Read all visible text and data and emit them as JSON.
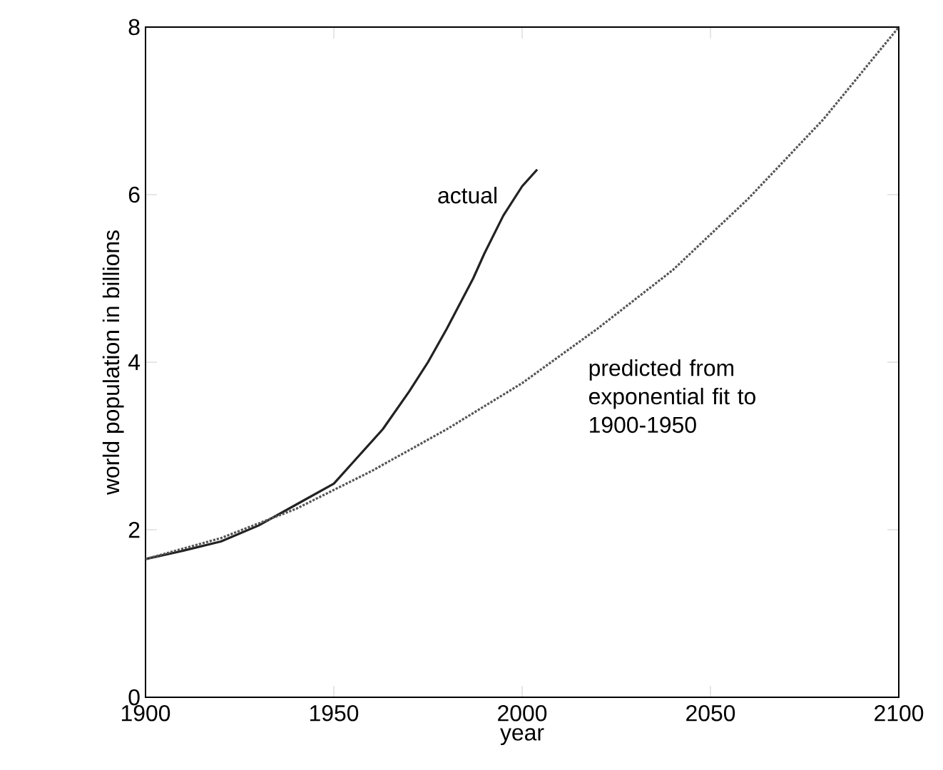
{
  "chart_data": {
    "type": "line",
    "xlabel": "year",
    "ylabel": "world population in billions",
    "xlim": [
      1900,
      2100
    ],
    "ylim": [
      0,
      8
    ],
    "xticks": [
      1900,
      1950,
      2000,
      2050,
      2100
    ],
    "yticks": [
      0,
      2,
      4,
      6,
      8
    ],
    "series": [
      {
        "name": "actual",
        "color": "#222222",
        "line_style": "solid",
        "x": [
          1900,
          1910,
          1920,
          1930,
          1940,
          1950,
          1955,
          1963,
          1970,
          1975,
          1980,
          1987,
          1990,
          1995,
          2000,
          2004
        ],
        "values": [
          1.65,
          1.75,
          1.86,
          2.05,
          2.3,
          2.55,
          2.8,
          3.2,
          3.65,
          4.0,
          4.4,
          5.0,
          5.3,
          5.75,
          6.1,
          6.3
        ]
      },
      {
        "name": "predicted from exponential fit to 1900-1950",
        "color": "#555555",
        "line_style": "dotted",
        "x": [
          1900,
          1920,
          1940,
          1960,
          1980,
          2000,
          2020,
          2040,
          2060,
          2080,
          2100
        ],
        "values": [
          1.65,
          1.9,
          2.25,
          2.7,
          3.2,
          3.75,
          4.4,
          5.1,
          5.95,
          6.9,
          8.0
        ]
      }
    ]
  }
}
